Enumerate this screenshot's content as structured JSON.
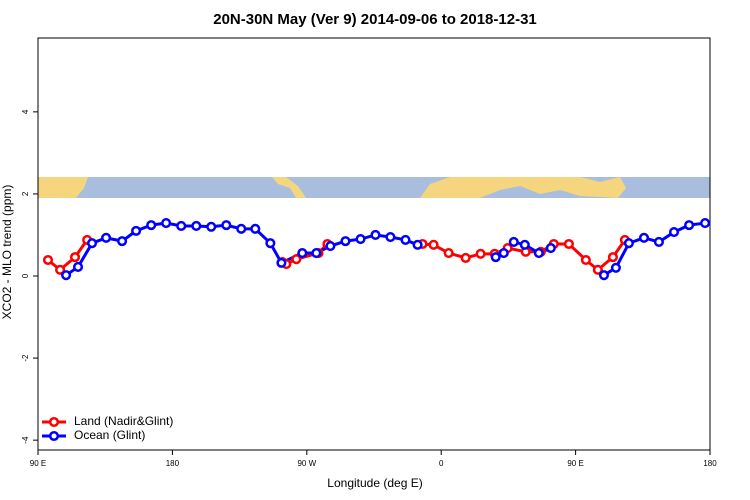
{
  "chart_data": {
    "type": "line",
    "title": "20N-30N May (Ver 9)   2014-09-06 to 2018-12-31",
    "xlabel": "Longitude (deg E)",
    "ylabel": "XCO2 - MLO trend (ppm)",
    "xlim": [
      90,
      540
    ],
    "xticks": [
      {
        "value": 90,
        "label": "90 E"
      },
      180,
      {
        "value": 270,
        "label": "90 W"
      },
      {
        "value": 360,
        "label": "0"
      },
      {
        "value": 450,
        "label": "90 E"
      },
      {
        "value": 540,
        "label": "180"
      }
    ],
    "ylim": [
      -4.24,
      5.8
    ],
    "yticks": [
      -4,
      -2,
      0,
      2,
      4
    ],
    "legend": "bottom-left",
    "series": [
      {
        "name": "Land (Nadir&Glint)",
        "color": "#ff0000",
        "x": [
          96.7,
          104.8,
          114.8,
          122.9,
          null,
          253.6,
          256.3,
          263,
          277.8,
          283.8,
          null,
          347.5,
          354.9,
          365,
          376.4,
          386.4,
          395.8,
          404.5,
          416.6,
          426.7,
          435.4,
          445.5,
          456.9,
          464.9,
          475,
          483
        ],
        "values": [
          0.39,
          0.15,
          0.46,
          0.88,
          null,
          0.34,
          0.29,
          0.41,
          0.56,
          0.78,
          null,
          0.78,
          0.76,
          0.56,
          0.44,
          0.54,
          0.54,
          0.68,
          0.59,
          0.59,
          0.78,
          0.78,
          0.39,
          0.15,
          0.46,
          0.88
        ]
      },
      {
        "name": "Ocean (Glint)",
        "color": "#0000ff",
        "x": [
          108.8,
          116.8,
          126.2,
          135.6,
          146.3,
          155.7,
          165.8,
          175.8,
          185.9,
          196,
          206,
          216.1,
          226.1,
          235.5,
          245.6,
          253,
          267,
          276.4,
          285.8,
          295.9,
          306,
          316,
          326,
          336.1,
          344.2,
          null,
          396.5,
          401.9,
          408.6,
          416,
          425.4,
          433.4,
          null,
          469,
          477,
          485.7,
          495.8,
          505.8,
          515.9,
          526,
          536.7
        ],
        "values": [
          0.02,
          0.22,
          0.8,
          0.93,
          0.85,
          1.1,
          1.24,
          1.29,
          1.22,
          1.22,
          1.2,
          1.24,
          1.15,
          1.15,
          0.8,
          0.32,
          0.56,
          0.56,
          0.73,
          0.85,
          0.9,
          1.0,
          0.95,
          0.88,
          0.76,
          null,
          0.46,
          0.56,
          0.83,
          0.76,
          0.56,
          0.68,
          null,
          0.02,
          0.2,
          0.8,
          0.93,
          0.83,
          1.07,
          1.24,
          1.29
        ]
      }
    ]
  }
}
